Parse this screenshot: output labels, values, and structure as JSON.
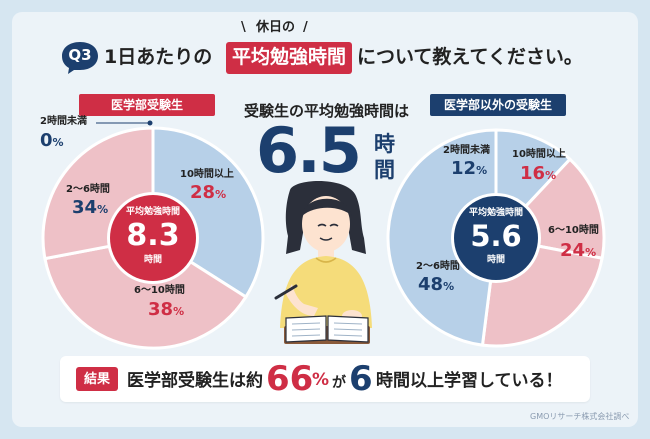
{
  "header": {
    "q_badge": "Q3",
    "eyebrow": "休日の",
    "eyebrow_left_mark": "\\",
    "eyebrow_right_mark": "/",
    "text_before": "1日あたりの",
    "highlight": "平均勉強時間",
    "text_after": "について教えてください。"
  },
  "center": {
    "headline": "受験生の平均勉強時間は",
    "big_value": "6.5",
    "unit_top": "時",
    "unit_bottom": "間"
  },
  "result": {
    "badge": "結果",
    "text1": "医学部受験生は約",
    "num1": "66",
    "pct": "%",
    "text2": "が",
    "num2": "6",
    "text3": "時間以上学習している！"
  },
  "credit": "GMOリサーチ株式会社調べ",
  "colors": {
    "red": "#cf2e45",
    "navy": "#1c3f6e",
    "pink": "#eec1c7",
    "blue": "#b7d0e8",
    "background": "#ecf3f8"
  },
  "icons": [
    "student-illustration-icon",
    "notebook-icon",
    "pencil-icon"
  ],
  "chart_data": [
    {
      "type": "pie",
      "title": "医学部受験生",
      "center_label": "平均勉強時間",
      "center_value": "8.3",
      "center_unit": "時間",
      "categories": [
        "2時間未満",
        "2〜6時間",
        "6〜10時間",
        "10時間以上"
      ],
      "values": [
        0,
        34,
        38,
        28
      ],
      "value_labels": [
        "0",
        "34",
        "38",
        "28"
      ],
      "unit": "%",
      "slice_colors": [
        "#b7d0e8",
        "#b7d0e8",
        "#eec1c7",
        "#eec1c7"
      ]
    },
    {
      "type": "pie",
      "title": "医学部以外の受験生",
      "center_label": "平均勉強時間",
      "center_value": "5.6",
      "center_unit": "時間",
      "categories": [
        "2時間未満",
        "10時間以上",
        "6〜10時間",
        "2〜6時間"
      ],
      "values": [
        12,
        16,
        24,
        48
      ],
      "value_labels": [
        "12",
        "16",
        "24",
        "48"
      ],
      "unit": "%",
      "slice_colors": [
        "#b7d0e8",
        "#eec1c7",
        "#eec1c7",
        "#b7d0e8"
      ]
    }
  ]
}
